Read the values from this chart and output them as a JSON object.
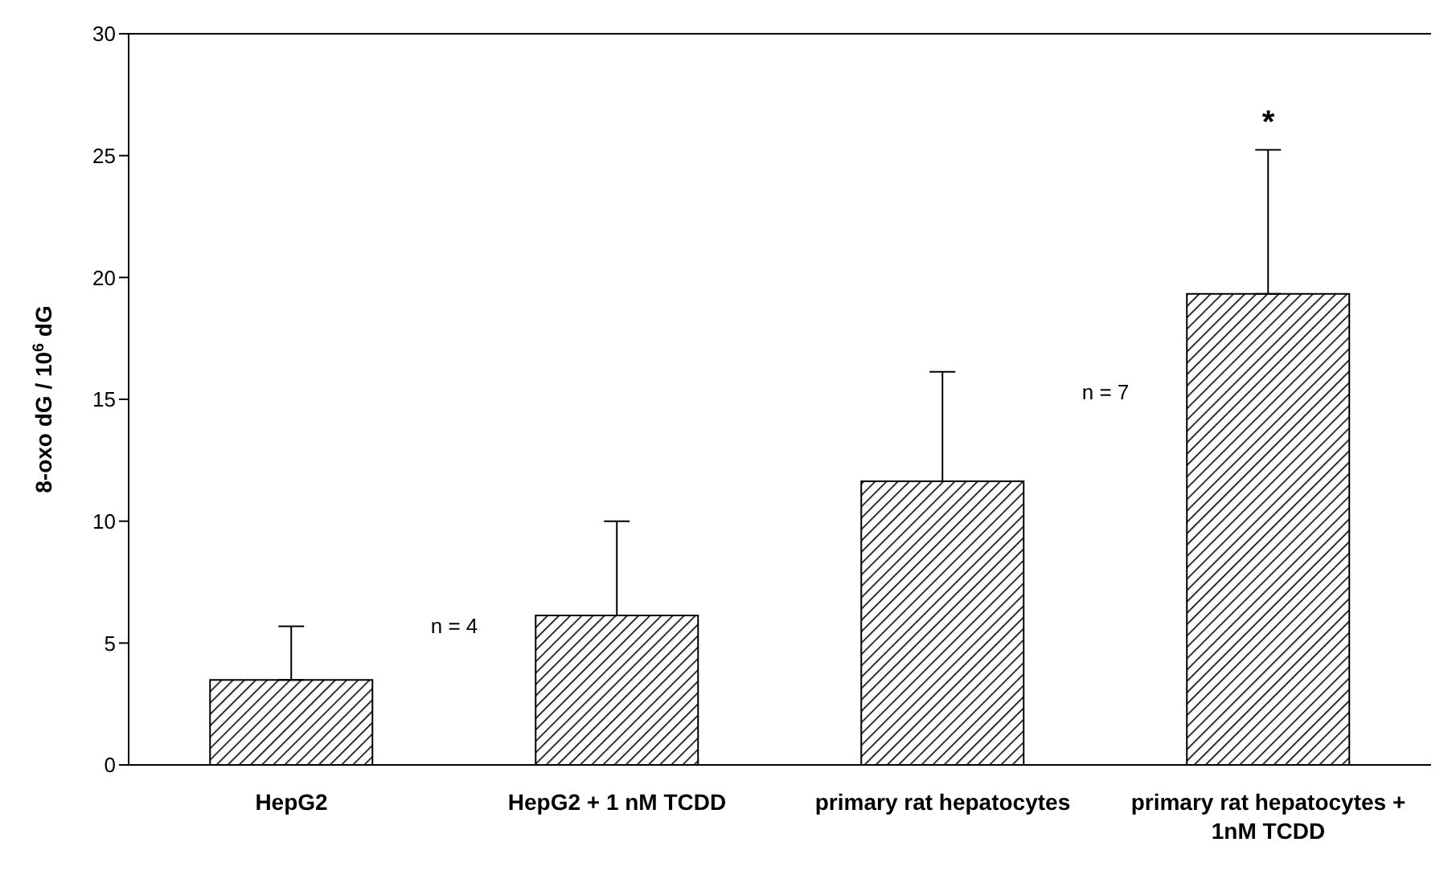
{
  "chart_data": {
    "type": "bar",
    "ylabel": "8-oxo dG / 10$^{6}$ dG",
    "categories": [
      "HepG2",
      "HepG2 + 1 nM TCDD",
      "primary rat hepatocytes",
      "primary rat hepatocytes + 1nM TCDD"
    ],
    "values": [
      3.49,
      6.13,
      11.64,
      19.33
    ],
    "errors": [
      [
        3.49,
        5.69
      ],
      [
        6.13,
        10.0
      ],
      [
        11.64,
        16.13
      ],
      [
        19.33,
        25.24
      ]
    ],
    "color": "#000000",
    "ylim": [
      0,
      30
    ],
    "yticks": [
      0,
      5,
      10,
      15,
      20,
      25,
      30
    ],
    "annotations": [
      "*",
      "n = 4",
      "n = 7"
    ]
  }
}
